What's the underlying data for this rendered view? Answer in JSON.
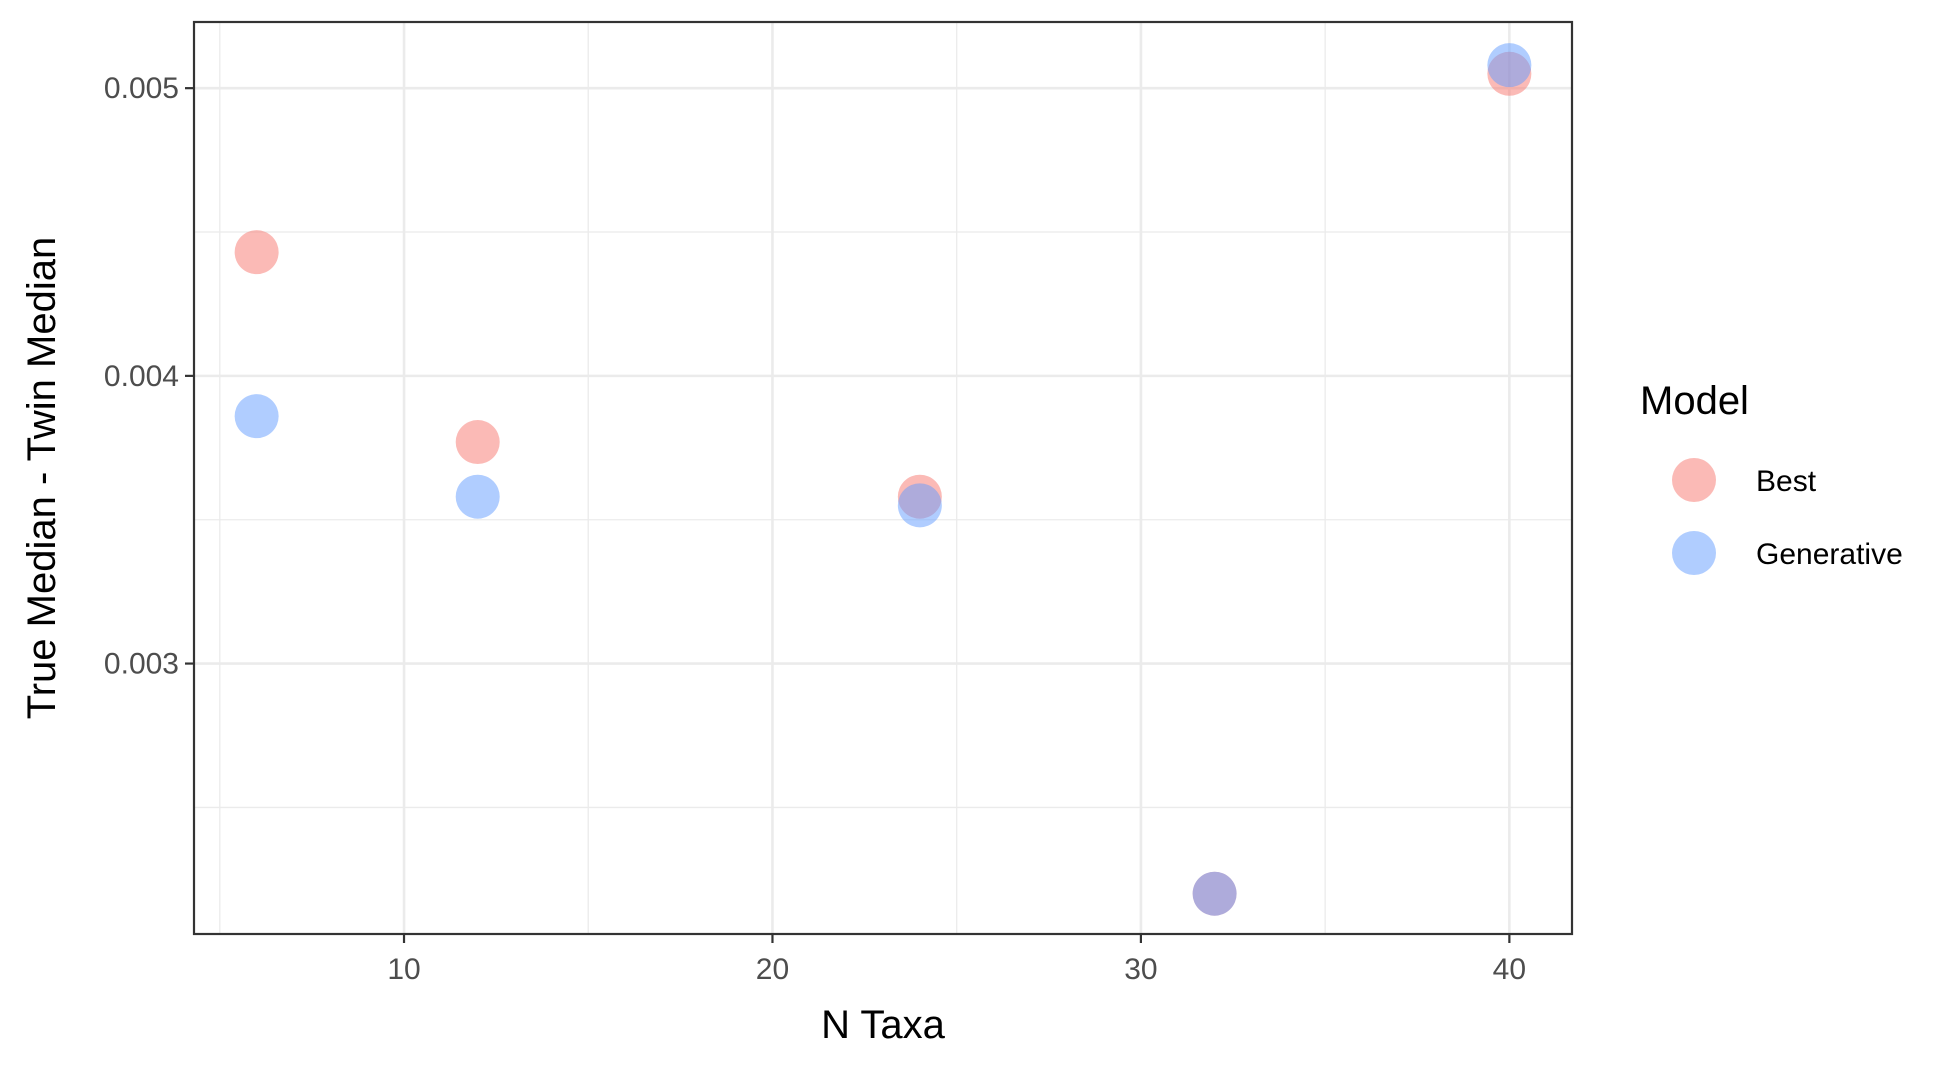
{
  "chart_data": {
    "type": "scatter",
    "title": "",
    "xlabel": "N Taxa",
    "ylabel": "True Median - Twin Median",
    "xlim": [
      4.3,
      41.7
    ],
    "ylim": [
      0.00206,
      0.00523
    ],
    "x_ticks": [
      10,
      20,
      30,
      40
    ],
    "x_tick_labels": [
      "10",
      "20",
      "30",
      "40"
    ],
    "x_minor_ticks": [
      5,
      15,
      25,
      35
    ],
    "y_ticks": [
      0.003,
      0.004,
      0.005
    ],
    "y_tick_labels": [
      "0.003",
      "0.004",
      "0.005"
    ],
    "y_minor_ticks": [
      0.0025,
      0.0035,
      0.0045
    ],
    "grid": true,
    "legend": {
      "title": "Model",
      "position": "right"
    },
    "series": [
      {
        "name": "Best",
        "color": "#F8766D",
        "points": [
          {
            "x": 6,
            "y": 0.00443
          },
          {
            "x": 12,
            "y": 0.00377
          },
          {
            "x": 24,
            "y": 0.00358
          },
          {
            "x": 32,
            "y": 0.0022
          },
          {
            "x": 40,
            "y": 0.00505
          }
        ]
      },
      {
        "name": "Generative",
        "color": "#619CFF",
        "points": [
          {
            "x": 6,
            "y": 0.00386
          },
          {
            "x": 12,
            "y": 0.00358
          },
          {
            "x": 24,
            "y": 0.00355
          },
          {
            "x": 32,
            "y": 0.0022
          },
          {
            "x": 40,
            "y": 0.00508
          }
        ]
      }
    ]
  }
}
